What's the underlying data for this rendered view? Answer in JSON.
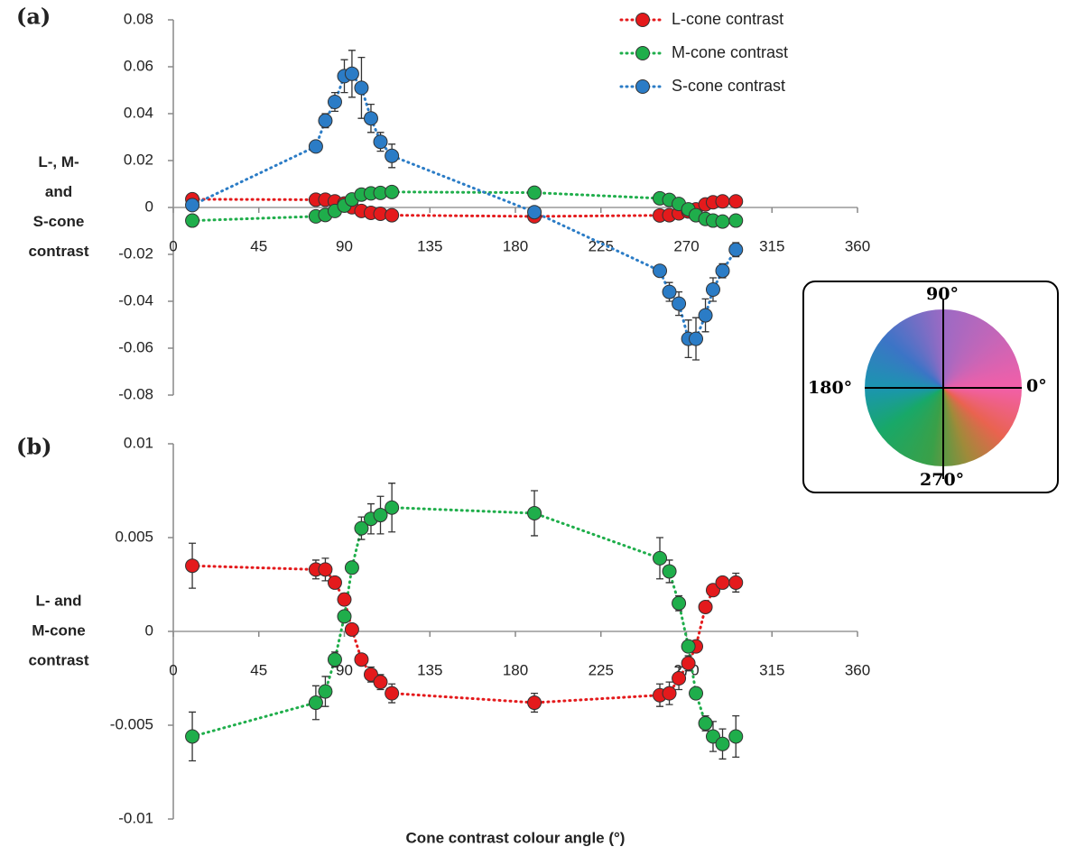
{
  "chart_data": [
    {
      "type": "scatter-line",
      "label": "(a)",
      "ylabel": [
        "L-, M-",
        "and",
        "S-cone",
        "contrast"
      ],
      "xlim": [
        0,
        360
      ],
      "xticks": [
        0,
        45,
        90,
        135,
        180,
        225,
        270,
        315,
        360
      ],
      "ylim": [
        -0.08,
        0.08
      ],
      "yticks": [
        0.08,
        0.06,
        0.04,
        0.02,
        0,
        -0.02,
        -0.04,
        -0.06,
        -0.08
      ],
      "legend": true,
      "x": [
        10,
        75,
        80,
        85,
        90,
        94,
        99,
        104,
        109,
        115,
        190,
        256,
        261,
        266,
        271,
        275,
        280,
        284,
        289,
        296
      ],
      "series": [
        {
          "name": "L-cone contrast",
          "color": "#e41a1c",
          "values": [
            0.0035,
            0.0033,
            0.0033,
            0.0026,
            0.0017,
            0.0001,
            -0.0015,
            -0.0023,
            -0.0027,
            -0.0033,
            -0.0038,
            -0.0034,
            -0.0033,
            -0.0025,
            -0.0017,
            -0.0008,
            0.0013,
            0.0022,
            0.0026,
            0.0026
          ]
        },
        {
          "name": "M-cone contrast",
          "color": "#1fae4b",
          "values": [
            -0.0056,
            -0.0038,
            -0.0032,
            -0.0015,
            0.0008,
            0.0034,
            0.0055,
            0.006,
            0.0062,
            0.0066,
            0.0063,
            0.0039,
            0.0032,
            0.0015,
            -0.0008,
            -0.0033,
            -0.0049,
            -0.0056,
            -0.006,
            -0.0056
          ]
        },
        {
          "name": "S-cone contrast",
          "color": "#2b7cc6",
          "values": [
            0.001,
            0.026,
            0.037,
            0.045,
            0.056,
            0.057,
            0.051,
            0.038,
            0.028,
            0.022,
            -0.002,
            -0.027,
            -0.036,
            -0.041,
            -0.056,
            -0.056,
            -0.046,
            -0.035,
            -0.027,
            -0.018
          ],
          "errors": [
            0.001,
            0.001,
            0.003,
            0.004,
            0.007,
            0.01,
            0.013,
            0.006,
            0.004,
            0.005,
            0.002,
            0.002,
            0.004,
            0.005,
            0.008,
            0.009,
            0.007,
            0.005,
            0.003,
            0.003
          ]
        }
      ]
    },
    {
      "type": "scatter-line",
      "label": "(b)",
      "ylabel": [
        "L- and",
        "M-cone",
        "contrast"
      ],
      "xlabel": "Cone contrast colour angle (°)",
      "xlim": [
        0,
        360
      ],
      "xticks": [
        0,
        45,
        90,
        135,
        180,
        225,
        270,
        315,
        360
      ],
      "ylim": [
        -0.01,
        0.01
      ],
      "yticks": [
        0.01,
        0.005,
        0,
        -0.005,
        -0.01
      ],
      "x": [
        10,
        75,
        80,
        85,
        90,
        94,
        99,
        104,
        109,
        115,
        190,
        256,
        261,
        266,
        271,
        275,
        280,
        284,
        289,
        296
      ],
      "series": [
        {
          "name": "L-cone contrast",
          "color": "#e41a1c",
          "values": [
            0.0035,
            0.0033,
            0.0033,
            0.0026,
            0.0017,
            0.0001,
            -0.0015,
            -0.0023,
            -0.0027,
            -0.0033,
            -0.0038,
            -0.0034,
            -0.0033,
            -0.0025,
            -0.0017,
            -0.0008,
            0.0013,
            0.0022,
            0.0026,
            0.0026
          ],
          "errors": [
            0.0012,
            0.0005,
            0.0006,
            0.0003,
            0.0003,
            0.0003,
            0.0003,
            0.0004,
            0.0004,
            0.0005,
            0.0005,
            0.0006,
            0.0006,
            0.0006,
            0.0004,
            0.0003,
            0.0003,
            0.0003,
            0.0003,
            0.0005
          ]
        },
        {
          "name": "M-cone contrast",
          "color": "#1fae4b",
          "values": [
            -0.0056,
            -0.0038,
            -0.0032,
            -0.0015,
            0.0008,
            0.0034,
            0.0055,
            0.006,
            0.0062,
            0.0066,
            0.0063,
            0.0039,
            0.0032,
            0.0015,
            -0.0008,
            -0.0033,
            -0.0049,
            -0.0056,
            -0.006,
            -0.0056
          ],
          "errors": [
            0.0013,
            0.0009,
            0.0008,
            0.0004,
            0.0003,
            0.0003,
            0.0006,
            0.0008,
            0.001,
            0.0013,
            0.0012,
            0.0011,
            0.0006,
            0.0004,
            0.0003,
            0.0003,
            0.0004,
            0.0008,
            0.0008,
            0.0011
          ]
        }
      ]
    }
  ],
  "color_wheel": {
    "top": "90°",
    "right": "0°",
    "left": "180°",
    "bottom": "270°"
  }
}
